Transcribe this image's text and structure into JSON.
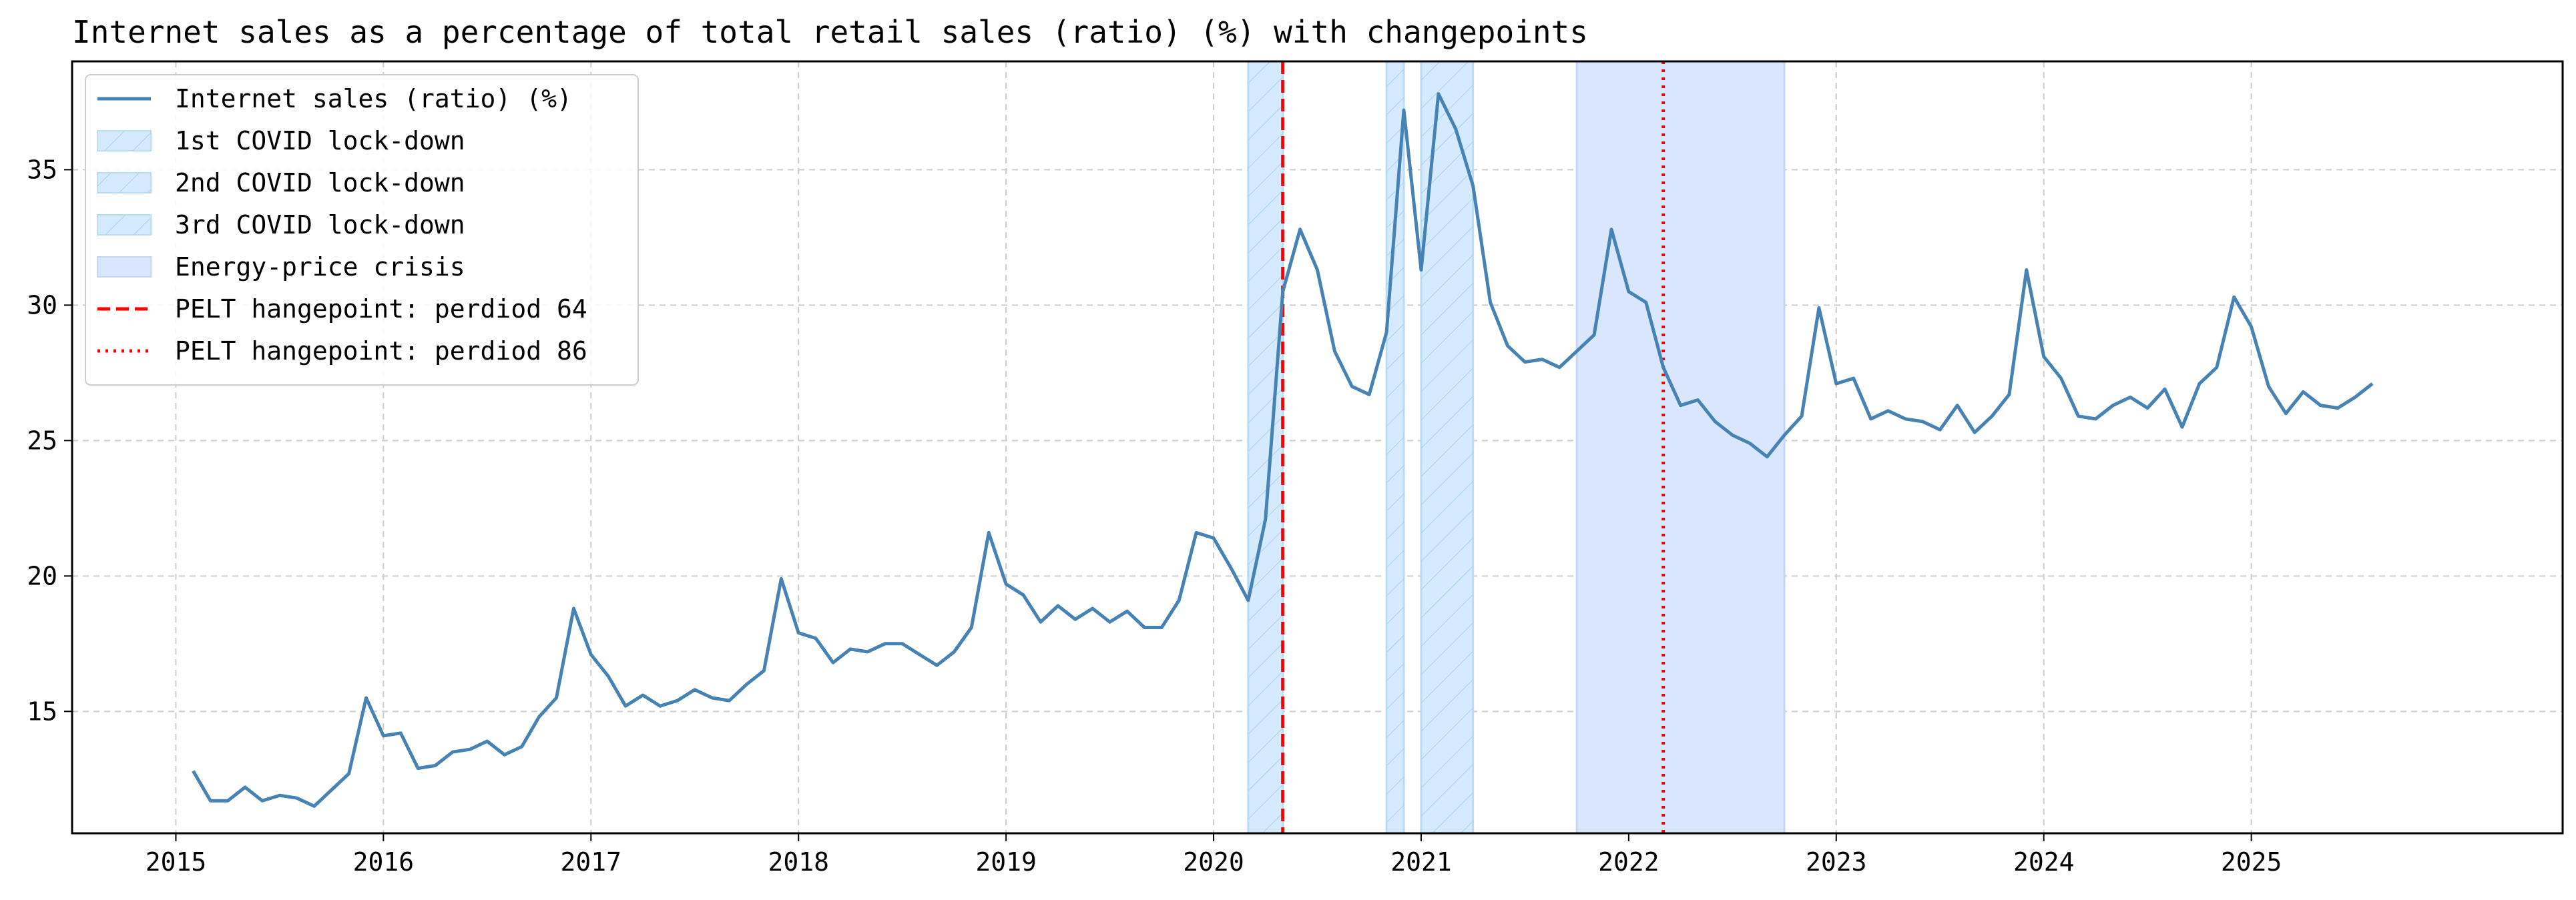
{
  "chart_data": {
    "type": "line",
    "title": "Internet sales as a percentage of total retail sales (ratio) (%) with changepoints",
    "xlabel": "",
    "ylabel": "",
    "x_axis": "date",
    "xlim": [
      "2014-07",
      "2026-07"
    ],
    "ylim": [
      10.5,
      39.0
    ],
    "x_ticks": [
      "2015",
      "2016",
      "2017",
      "2018",
      "2019",
      "2020",
      "2021",
      "2022",
      "2023",
      "2024",
      "2025"
    ],
    "y_ticks": [
      15,
      20,
      25,
      30,
      35
    ],
    "grid": true,
    "legend_position": "top-left",
    "series": [
      {
        "name": "Internet sales (ratio) (%)",
        "color": "#4682b4",
        "x": [
          "2015-02",
          "2015-03",
          "2015-04",
          "2015-05",
          "2015-06",
          "2015-07",
          "2015-08",
          "2015-09",
          "2015-10",
          "2015-11",
          "2015-12",
          "2016-01",
          "2016-02",
          "2016-03",
          "2016-04",
          "2016-05",
          "2016-06",
          "2016-07",
          "2016-08",
          "2016-09",
          "2016-10",
          "2016-11",
          "2016-12",
          "2017-01",
          "2017-02",
          "2017-03",
          "2017-04",
          "2017-05",
          "2017-06",
          "2017-07",
          "2017-08",
          "2017-09",
          "2017-10",
          "2017-11",
          "2017-12",
          "2018-01",
          "2018-02",
          "2018-03",
          "2018-04",
          "2018-05",
          "2018-06",
          "2018-07",
          "2018-08",
          "2018-09",
          "2018-10",
          "2018-11",
          "2018-12",
          "2019-01",
          "2019-02",
          "2019-03",
          "2019-04",
          "2019-05",
          "2019-06",
          "2019-07",
          "2019-08",
          "2019-09",
          "2019-10",
          "2019-11",
          "2019-12",
          "2020-01",
          "2020-02",
          "2020-03",
          "2020-04",
          "2020-05",
          "2020-06",
          "2020-07",
          "2020-08",
          "2020-09",
          "2020-10",
          "2020-11",
          "2020-12",
          "2021-01",
          "2021-02",
          "2021-03",
          "2021-04",
          "2021-05",
          "2021-06",
          "2021-07",
          "2021-08",
          "2021-09",
          "2021-10",
          "2021-11",
          "2021-12",
          "2022-01",
          "2022-02",
          "2022-03",
          "2022-04",
          "2022-05",
          "2022-06",
          "2022-07",
          "2022-08",
          "2022-09",
          "2022-10",
          "2022-11",
          "2022-12",
          "2023-01",
          "2023-02",
          "2023-03",
          "2023-04",
          "2023-05",
          "2023-06",
          "2023-07",
          "2023-08",
          "2023-09",
          "2023-10",
          "2023-11",
          "2023-12",
          "2024-01",
          "2024-02",
          "2024-03",
          "2024-04",
          "2024-05",
          "2024-06",
          "2024-07",
          "2024-08",
          "2024-09",
          "2024-10",
          "2024-11",
          "2024-12",
          "2025-01",
          "2025-02",
          "2025-03",
          "2025-04",
          "2025-05",
          "2025-06",
          "2025-07",
          "2025-08"
        ],
        "values": [
          12.8,
          11.7,
          11.7,
          12.2,
          11.7,
          11.9,
          11.8,
          11.5,
          12.1,
          12.7,
          15.5,
          14.1,
          14.2,
          12.9,
          13.0,
          13.5,
          13.6,
          13.9,
          13.4,
          13.7,
          14.8,
          15.5,
          18.8,
          17.1,
          16.3,
          15.2,
          15.6,
          15.2,
          15.4,
          15.8,
          15.5,
          15.4,
          16.0,
          16.5,
          19.9,
          17.9,
          17.7,
          16.8,
          17.3,
          17.2,
          17.5,
          17.5,
          17.1,
          16.7,
          17.2,
          18.1,
          21.6,
          19.7,
          19.3,
          18.3,
          18.9,
          18.4,
          18.8,
          18.3,
          18.7,
          18.1,
          18.1,
          19.1,
          21.6,
          21.4,
          20.3,
          19.1,
          22.1,
          30.5,
          32.8,
          31.3,
          28.3,
          27.0,
          26.7,
          29.0,
          37.2,
          31.3,
          37.8,
          36.5,
          34.4,
          30.1,
          28.5,
          27.9,
          28.0,
          27.7,
          28.3,
          28.9,
          32.8,
          30.5,
          30.1,
          27.7,
          26.3,
          26.5,
          25.7,
          25.2,
          24.9,
          24.4,
          25.2,
          25.9,
          29.9,
          27.1,
          27.3,
          25.8,
          26.1,
          25.8,
          25.7,
          25.4,
          26.3,
          25.3,
          25.9,
          26.7,
          31.3,
          28.1,
          27.3,
          25.9,
          25.8,
          26.3,
          26.6,
          26.2,
          26.9,
          25.5,
          27.1,
          27.7,
          30.3,
          29.2,
          27.0,
          26.0,
          26.8,
          26.3,
          26.2,
          26.6,
          27.1
        ]
      }
    ],
    "shaded_periods": [
      {
        "name": "1st COVID lock-down",
        "start": "2020-03",
        "end": "2020-05",
        "color": "#d6eaff",
        "edge": "#b9dcf5",
        "hatch": true
      },
      {
        "name": "2nd COVID lock-down",
        "start": "2020-11",
        "end": "2020-12",
        "color": "#d6eaff",
        "edge": "#b9dcf5",
        "hatch": true
      },
      {
        "name": "3rd COVID lock-down",
        "start": "2021-01",
        "end": "2021-04",
        "color": "#d6eaff",
        "edge": "#b9dcf5",
        "hatch": true
      },
      {
        "name": "Energy-price crisis",
        "start": "2021-10",
        "end": "2022-10",
        "color": "#d9e6fc",
        "edge": "#c3d6f3",
        "hatch": false
      }
    ],
    "changepoints": [
      {
        "name": "PELT hangepoint: perdiod 64",
        "date": "2020-05",
        "color": "#ff0000",
        "style": "dashed"
      },
      {
        "name": "PELT hangepoint: perdiod 86",
        "date": "2022-03",
        "color": "#ff0000",
        "style": "dotted"
      }
    ]
  }
}
